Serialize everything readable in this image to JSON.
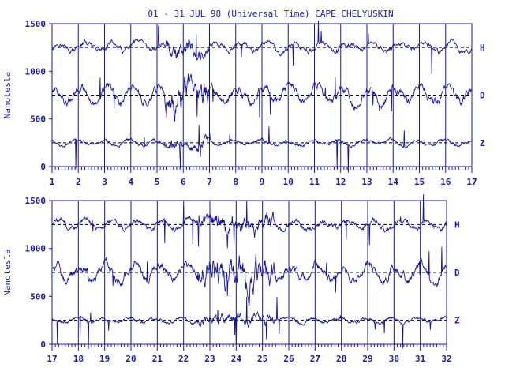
{
  "title": "01 - 31 JUL 98 (Universal Time) CAPE CHELYUSKIN",
  "colors": {
    "trace": "#1414a6",
    "axis": "#1a1aa8",
    "baseline": "#000000"
  },
  "chart_data": [
    {
      "type": "line",
      "title": "01 - 31 JUL 98 (Universal Time) CAPE CHELYUSKIN",
      "ylabel": "Nanotesla",
      "xlabel": "",
      "xlim": [
        1,
        17
      ],
      "ylim": [
        0,
        1500
      ],
      "x_ticks": [
        "1",
        "2",
        "3",
        "4",
        "5",
        "6",
        "7",
        "8",
        "9",
        "10",
        "11",
        "12",
        "13",
        "14",
        "15",
        "16",
        "17"
      ],
      "y_ticks": [
        "0",
        "500",
        "1000",
        "1500"
      ],
      "grid": "vertical day lines",
      "series": [
        {
          "name": "H",
          "baseline": 1250
        },
        {
          "name": "D",
          "baseline": 750
        },
        {
          "name": "Z",
          "baseline": 250
        }
      ]
    },
    {
      "type": "line",
      "title": "",
      "ylabel": "Nanotesla",
      "xlabel": "",
      "xlim": [
        17,
        32
      ],
      "ylim": [
        0,
        1500
      ],
      "x_ticks": [
        "17",
        "18",
        "19",
        "20",
        "21",
        "22",
        "23",
        "24",
        "25",
        "26",
        "27",
        "28",
        "29",
        "30",
        "31",
        "32"
      ],
      "y_ticks": [
        "0",
        "500",
        "1000",
        "1500"
      ],
      "grid": "vertical day lines",
      "series": [
        {
          "name": "H",
          "baseline": 1250
        },
        {
          "name": "D",
          "baseline": 750
        },
        {
          "name": "Z",
          "baseline": 250
        }
      ]
    }
  ]
}
